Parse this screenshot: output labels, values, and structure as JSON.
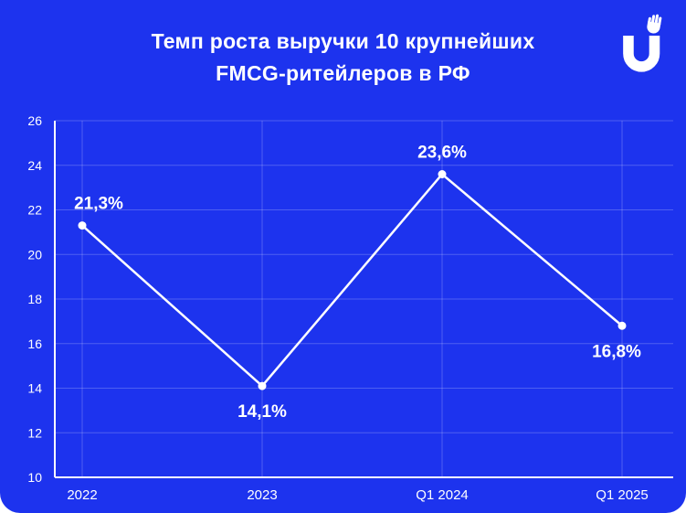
{
  "page": {
    "background_color": "#1D33EE",
    "text_color": "#FFFFFF"
  },
  "header": {
    "title_line1": "Темп роста выручки 10 крупнейших",
    "title_line2": "FMCG-ритейлеров в РФ",
    "logo_name": "u-hand-logo"
  },
  "chart_data": {
    "type": "line",
    "title": "Темп роста выручки 10 крупнейших FMCG-ритейлеров в РФ",
    "xlabel": "",
    "ylabel": "",
    "categories": [
      "2022",
      "2023",
      "Q1 2024",
      "Q1 2025"
    ],
    "series": [
      {
        "name": "Темп роста выручки, %",
        "values": [
          21.3,
          14.1,
          23.6,
          16.8
        ]
      }
    ],
    "point_labels": [
      "21,3%",
      "14,1%",
      "23,6%",
      "16,8%"
    ],
    "point_label_positions": [
      "above",
      "below",
      "above",
      "below"
    ],
    "point_label_dx": [
      18,
      0,
      0,
      -6
    ],
    "yticks": [
      10,
      12,
      14,
      16,
      18,
      20,
      22,
      24,
      26
    ],
    "ylim": [
      10,
      26
    ],
    "ytick_step": 2,
    "grid": true,
    "legend": "none",
    "line_color": "#FFFFFF",
    "marker_color": "#FFFFFF",
    "grid_color": "rgba(255,255,255,0.22)",
    "axis_color": "#FFFFFF",
    "text_color": "#FFFFFF",
    "background_color": "#1D33EE"
  }
}
